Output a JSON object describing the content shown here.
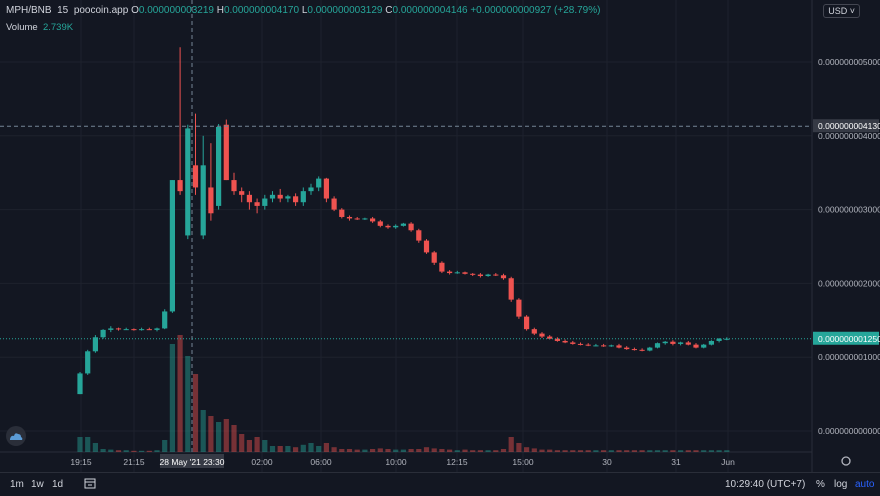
{
  "header": {
    "symbol": "MPH/BNB",
    "interval": "15",
    "source": "poocoin.app",
    "o_label": "O",
    "o_value": "0.000000003219",
    "h_label": "H",
    "h_value": "0.000000004170",
    "l_label": "L",
    "l_value": "0.000000003129",
    "c_label": "C",
    "c_value": "0.000000004146",
    "change": "+0.000000000927 (+28.79%)",
    "volume_label": "Volume",
    "volume_value": "2.739K"
  },
  "currency": "USD ˅",
  "bottom": {
    "tf_1m": "1m",
    "tf_1w": "1w",
    "tf_1d": "1d",
    "time": "10:29:40 (UTC+7)",
    "percent": "%",
    "log": "log",
    "auto": "auto"
  },
  "colors": {
    "up": "#26a69a",
    "down": "#ef5350",
    "bg": "#131722"
  },
  "chart_data": {
    "type": "candlestick",
    "y_ticks": [
      "0.000000005000",
      "0.000000004000",
      "0.000000003000",
      "0.000000002000",
      "0.000000001000",
      "0.000000000000"
    ],
    "y_tick_values": [
      5e-09,
      4e-09,
      3e-09,
      2e-09,
      1e-09,
      0.0
    ],
    "x_ticks": [
      "19:15",
      "21:15",
      "02:00",
      "06:00",
      "10:00",
      "12:15",
      "15:00",
      "30",
      "31",
      "Jun"
    ],
    "crosshair_time": "28 May '21  23:30",
    "crosshair_price": "0.000000004130",
    "last_price": "0.000000001250",
    "candles": [
      [
        0.5,
        0.8,
        0.5,
        0.78
      ],
      [
        0.78,
        1.1,
        0.76,
        1.08
      ],
      [
        1.08,
        1.3,
        1.06,
        1.27
      ],
      [
        1.27,
        1.38,
        1.25,
        1.37
      ],
      [
        1.37,
        1.42,
        1.34,
        1.39
      ],
      [
        1.39,
        1.4,
        1.36,
        1.38
      ],
      [
        1.38,
        1.4,
        1.37,
        1.38
      ],
      [
        1.38,
        1.39,
        1.36,
        1.37
      ],
      [
        1.37,
        1.4,
        1.36,
        1.38
      ],
      [
        1.38,
        1.4,
        1.37,
        1.37
      ],
      [
        1.37,
        1.4,
        1.35,
        1.39
      ],
      [
        1.39,
        1.65,
        1.38,
        1.62
      ],
      [
        1.62,
        3.4,
        1.6,
        3.4
      ],
      [
        3.4,
        5.2,
        3.2,
        3.25
      ],
      [
        2.65,
        4.15,
        2.6,
        4.1
      ],
      [
        3.6,
        4.3,
        3.2,
        3.3
      ],
      [
        2.65,
        4.0,
        2.6,
        3.6
      ],
      [
        3.3,
        3.9,
        2.85,
        2.95
      ],
      [
        3.05,
        4.16,
        3.0,
        4.12
      ],
      [
        4.15,
        4.22,
        3.4,
        3.4
      ],
      [
        3.4,
        3.5,
        3.2,
        3.25
      ],
      [
        3.25,
        3.3,
        3.1,
        3.2
      ],
      [
        3.2,
        3.25,
        3.0,
        3.1
      ],
      [
        3.1,
        3.15,
        2.95,
        3.05
      ],
      [
        3.05,
        3.2,
        3.0,
        3.15
      ],
      [
        3.15,
        3.25,
        3.1,
        3.2
      ],
      [
        3.2,
        3.28,
        3.1,
        3.15
      ],
      [
        3.15,
        3.2,
        3.1,
        3.18
      ],
      [
        3.18,
        3.22,
        3.05,
        3.1
      ],
      [
        3.1,
        3.3,
        3.05,
        3.25
      ],
      [
        3.25,
        3.35,
        3.2,
        3.3
      ],
      [
        3.3,
        3.45,
        3.25,
        3.42
      ],
      [
        3.42,
        3.43,
        3.1,
        3.15
      ],
      [
        3.15,
        3.18,
        2.98,
        3.0
      ],
      [
        3.0,
        3.02,
        2.88,
        2.9
      ],
      [
        2.9,
        2.92,
        2.85,
        2.88
      ],
      [
        2.88,
        2.9,
        2.86,
        2.87
      ],
      [
        2.87,
        2.89,
        2.86,
        2.88
      ],
      [
        2.88,
        2.9,
        2.82,
        2.84
      ],
      [
        2.84,
        2.86,
        2.76,
        2.78
      ],
      [
        2.78,
        2.8,
        2.74,
        2.76
      ],
      [
        2.76,
        2.8,
        2.74,
        2.78
      ],
      [
        2.78,
        2.82,
        2.77,
        2.81
      ],
      [
        2.81,
        2.83,
        2.7,
        2.72
      ],
      [
        2.72,
        2.74,
        2.55,
        2.58
      ],
      [
        2.58,
        2.6,
        2.4,
        2.42
      ],
      [
        2.42,
        2.44,
        2.25,
        2.28
      ],
      [
        2.28,
        2.3,
        2.14,
        2.16
      ],
      [
        2.16,
        2.18,
        2.12,
        2.14
      ],
      [
        2.14,
        2.17,
        2.13,
        2.15
      ],
      [
        2.15,
        2.16,
        2.12,
        2.13
      ],
      [
        2.13,
        2.14,
        2.1,
        2.12
      ],
      [
        2.12,
        2.14,
        2.08,
        2.1
      ],
      [
        2.1,
        2.13,
        2.09,
        2.12
      ],
      [
        2.12,
        2.14,
        2.1,
        2.11
      ],
      [
        2.11,
        2.13,
        2.05,
        2.07
      ],
      [
        2.07,
        2.09,
        1.75,
        1.78
      ],
      [
        1.78,
        1.8,
        1.52,
        1.55
      ],
      [
        1.55,
        1.57,
        1.36,
        1.38
      ],
      [
        1.38,
        1.4,
        1.3,
        1.32
      ],
      [
        1.32,
        1.34,
        1.26,
        1.28
      ],
      [
        1.28,
        1.3,
        1.24,
        1.25
      ],
      [
        1.25,
        1.27,
        1.21,
        1.22
      ],
      [
        1.22,
        1.24,
        1.19,
        1.2
      ],
      [
        1.2,
        1.22,
        1.17,
        1.18
      ],
      [
        1.18,
        1.2,
        1.16,
        1.17
      ],
      [
        1.17,
        1.19,
        1.15,
        1.16
      ],
      [
        1.16,
        1.18,
        1.15,
        1.16
      ],
      [
        1.16,
        1.18,
        1.14,
        1.15
      ],
      [
        1.15,
        1.17,
        1.14,
        1.16
      ],
      [
        1.16,
        1.18,
        1.12,
        1.13
      ],
      [
        1.13,
        1.15,
        1.1,
        1.11
      ],
      [
        1.11,
        1.13,
        1.09,
        1.1
      ],
      [
        1.1,
        1.12,
        1.08,
        1.09
      ],
      [
        1.09,
        1.14,
        1.08,
        1.13
      ],
      [
        1.13,
        1.2,
        1.12,
        1.19
      ],
      [
        1.19,
        1.22,
        1.17,
        1.21
      ],
      [
        1.21,
        1.23,
        1.16,
        1.18
      ],
      [
        1.18,
        1.21,
        1.16,
        1.2
      ],
      [
        1.2,
        1.22,
        1.16,
        1.17
      ],
      [
        1.17,
        1.19,
        1.12,
        1.13
      ],
      [
        1.13,
        1.18,
        1.12,
        1.17
      ],
      [
        1.17,
        1.23,
        1.16,
        1.22
      ],
      [
        1.22,
        1.26,
        1.2,
        1.25
      ],
      [
        1.25,
        1.27,
        1.23,
        1.25
      ]
    ],
    "volumes": [
      0.25,
      0.25,
      0.15,
      0.05,
      0.04,
      0.03,
      0.03,
      0.02,
      0.02,
      0.02,
      0.03,
      0.2,
      1.8,
      1.95,
      1.6,
      1.3,
      0.7,
      0.6,
      0.5,
      0.55,
      0.45,
      0.3,
      0.2,
      0.25,
      0.2,
      0.1,
      0.1,
      0.1,
      0.08,
      0.12,
      0.15,
      0.1,
      0.15,
      0.08,
      0.05,
      0.05,
      0.04,
      0.04,
      0.05,
      0.06,
      0.05,
      0.04,
      0.04,
      0.05,
      0.05,
      0.08,
      0.06,
      0.05,
      0.04,
      0.03,
      0.04,
      0.03,
      0.03,
      0.03,
      0.03,
      0.05,
      0.25,
      0.15,
      0.08,
      0.06,
      0.04,
      0.04,
      0.03,
      0.03,
      0.03,
      0.03,
      0.03,
      0.03,
      0.03,
      0.03,
      0.03,
      0.03,
      0.03,
      0.03,
      0.03,
      0.03,
      0.03,
      0.03,
      0.03,
      0.03,
      0.03,
      0.03,
      0.03,
      0.03,
      0.03
    ]
  }
}
